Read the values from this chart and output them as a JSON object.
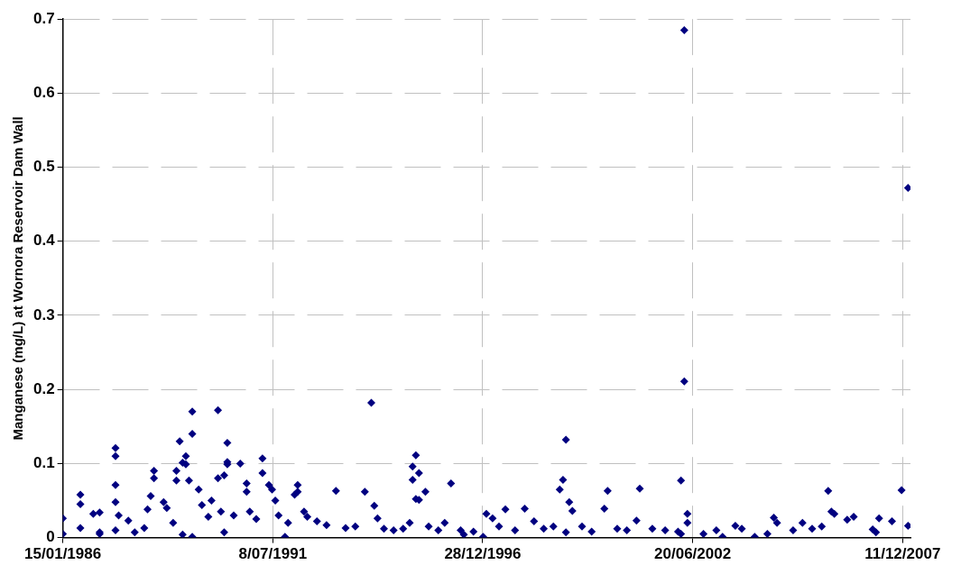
{
  "chart_data": {
    "type": "scatter",
    "ylabel": "Manganese (mg/L) at Wornora Reservoir Dam Wall",
    "marker": "diamond",
    "grid": true,
    "legend": false,
    "xlim": [
      "1986-01-15",
      "2008-02-24"
    ],
    "xticks": [
      {
        "value": "1986-01-15",
        "label": "15/01/1986"
      },
      {
        "value": "1991-07-08",
        "label": "8/07/1991"
      },
      {
        "value": "1996-12-28",
        "label": "28/12/1996"
      },
      {
        "value": "2002-06-20",
        "label": "20/06/2002"
      },
      {
        "value": "2007-12-11",
        "label": "11/12/2007"
      }
    ],
    "ylim": [
      0,
      0.7
    ],
    "yticks": [
      0,
      0.1,
      0.2,
      0.3,
      0.4,
      0.5,
      0.6,
      0.7
    ],
    "series": [
      {
        "color": "#000080",
        "x": [
          "1986-01-15",
          "1986-01-15",
          "1986-07",
          "1986-07",
          "1986-07",
          "1986-11",
          "1987-01",
          "1987-01",
          "1987-01",
          "1987-06",
          "1987-06",
          "1987-06",
          "1987-06",
          "1987-07",
          "1987-06",
          "1987-10",
          "1987-12",
          "1988-03",
          "1988-04",
          "1988-06",
          "1988-06",
          "1988-05",
          "1988-09",
          "1988-10",
          "1988-12",
          "1989-01",
          "1989-02",
          "1989-01",
          "1989-03",
          "1989-04",
          "1989-04",
          "1989-03",
          "1989-06",
          "1989-06",
          "1989-06",
          "1989-05",
          "1989-08",
          "1989-09",
          "1989-11",
          "1989-12",
          "1990-02",
          "1990-05",
          "1990-05",
          "1990-05",
          "1990-04",
          "1990-02",
          "1990-03",
          "1990-04",
          "1990-07",
          "1990-09",
          "1990-11",
          "1990-11",
          "1990-12",
          "1991-02",
          "1991-04",
          "1991-04",
          "1991-06",
          "1991-07",
          "1991-08",
          "1991-09",
          "1991-11",
          "1991-12",
          "1992-02",
          "1992-03",
          "1992-03",
          "1992-05",
          "1992-06",
          "1992-09",
          "1992-12",
          "1993-03",
          "1993-06",
          "1993-09",
          "1993-12",
          "1994-02",
          "1994-03",
          "1994-04",
          "1994-06",
          "1994-09",
          "1994-12",
          "1995-02",
          "1995-04",
          "1995-03",
          "1995-03",
          "1995-05",
          "1995-07",
          "1995-04",
          "1995-05",
          "1995-08",
          "1995-11",
          "1996-03",
          "1996-01",
          "1996-06",
          "1996-07",
          "1996-10",
          "1997-01",
          "1997-02",
          "1997-04",
          "1997-06",
          "1997-08",
          "1997-11",
          "1998-02",
          "1998-05",
          "1998-08",
          "1998-11",
          "1999-01",
          "1999-03",
          "1999-02",
          "1999-04",
          "1999-05",
          "1999-03",
          "1999-08",
          "1999-11",
          "2000-03",
          "2000-04",
          "2000-07",
          "2000-10",
          "2001-01",
          "2001-02",
          "2001-06",
          "2001-10",
          "2002-02",
          "2002-03",
          "2002-04",
          "2002-04",
          "2002-05",
          "2002-05",
          "2002-03",
          "2002-10",
          "2003-02",
          "2003-04",
          "2003-08",
          "2003-10",
          "2004-02",
          "2004-06",
          "2004-08",
          "2004-09",
          "2005-02",
          "2005-05",
          "2005-08",
          "2005-11",
          "2006-01",
          "2006-02",
          "2006-03",
          "2006-07",
          "2006-09",
          "2007-03",
          "2007-04",
          "2007-05",
          "2007-09",
          "2007-12",
          "2008-02",
          "2008-02"
        ],
        "values": [
          0.026,
          0.005,
          0.058,
          0.045,
          0.013,
          0.032,
          0.005,
          0.034,
          0.007,
          0.121,
          0.11,
          0.071,
          0.048,
          0.03,
          0.01,
          0.023,
          0.007,
          0.013,
          0.038,
          0.09,
          0.08,
          0.056,
          0.048,
          0.04,
          0.02,
          0.09,
          0.13,
          0.077,
          0.101,
          0.11,
          0.099,
          0.004,
          0.17,
          0.14,
          0.001,
          0.077,
          0.065,
          0.044,
          0.028,
          0.05,
          0.172,
          0.128,
          0.102,
          0.099,
          0.084,
          0.08,
          0.035,
          0.007,
          0.03,
          0.1,
          0.073,
          0.062,
          0.035,
          0.025,
          0.107,
          0.087,
          0.071,
          0.065,
          0.05,
          0.03,
          0.001,
          0.02,
          0.058,
          0.071,
          0.062,
          0.035,
          0.028,
          0.022,
          0.017,
          0.063,
          0.013,
          0.015,
          0.062,
          0.182,
          0.043,
          0.026,
          0.012,
          0.01,
          0.012,
          0.02,
          0.111,
          0.096,
          0.078,
          0.087,
          0.062,
          0.052,
          0.051,
          0.015,
          0.01,
          0.073,
          0.02,
          0.01,
          0.004,
          0.008,
          0.001,
          0.032,
          0.026,
          0.015,
          0.038,
          0.01,
          0.039,
          0.022,
          0.012,
          0.015,
          0.065,
          0.132,
          0.078,
          0.048,
          0.036,
          0.007,
          0.015,
          0.008,
          0.039,
          0.063,
          0.012,
          0.01,
          0.023,
          0.066,
          0.012,
          0.01,
          0.008,
          0.077,
          0.211,
          0.685,
          0.032,
          0.02,
          0.005,
          0.005,
          0.01,
          0.001,
          0.016,
          0.012,
          0.001,
          0.005,
          0.027,
          0.02,
          0.01,
          0.02,
          0.012,
          0.015,
          0.063,
          0.035,
          0.032,
          0.024,
          0.028,
          0.011,
          0.007,
          0.026,
          0.022,
          0.064,
          0.016,
          0.472
        ]
      }
    ]
  }
}
